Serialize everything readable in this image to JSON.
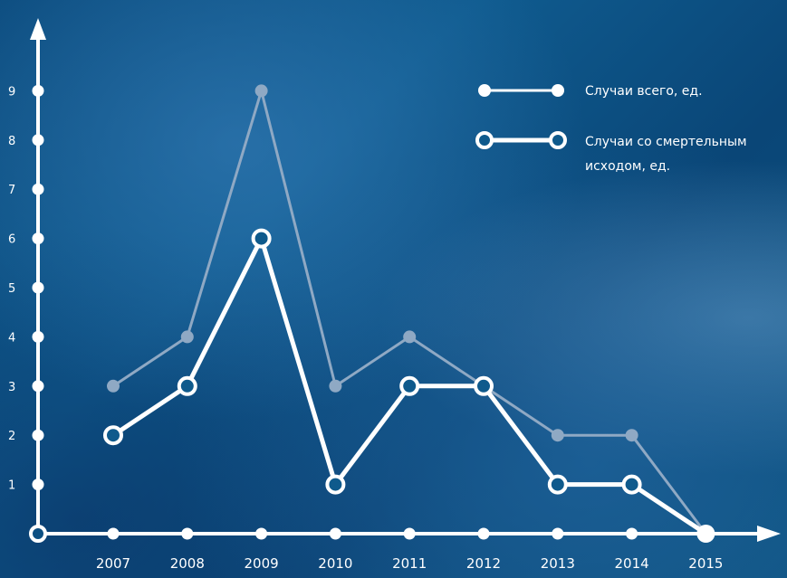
{
  "chart_data": {
    "type": "line",
    "categories": [
      "2007",
      "2008",
      "2009",
      "2010",
      "2011",
      "2012",
      "2013",
      "2014",
      "2015"
    ],
    "y_ticks": [
      "1",
      "2",
      "3",
      "4",
      "5",
      "6",
      "7",
      "8",
      "9"
    ],
    "ylim": [
      0,
      9
    ],
    "series": [
      {
        "name": "Случаи всего, ед.",
        "values": [
          3,
          4,
          9,
          3,
          4,
          3,
          2,
          2,
          0
        ],
        "color": "#8fa9c4",
        "marker": "filled"
      },
      {
        "name_lines": [
          "Случаи со смертельным",
          "исходом, ед."
        ],
        "values": [
          2,
          3,
          6,
          1,
          3,
          3,
          1,
          1,
          0
        ],
        "color": "#ffffff",
        "marker": "hollow"
      }
    ],
    "legend": {
      "position": "top-right",
      "entry1": "Случаи всего, ед.",
      "entry2_line1": "Случаи со смертельным",
      "entry2_line2": "исходом, ед."
    },
    "grid": false,
    "axis_color": "#ffffff"
  }
}
